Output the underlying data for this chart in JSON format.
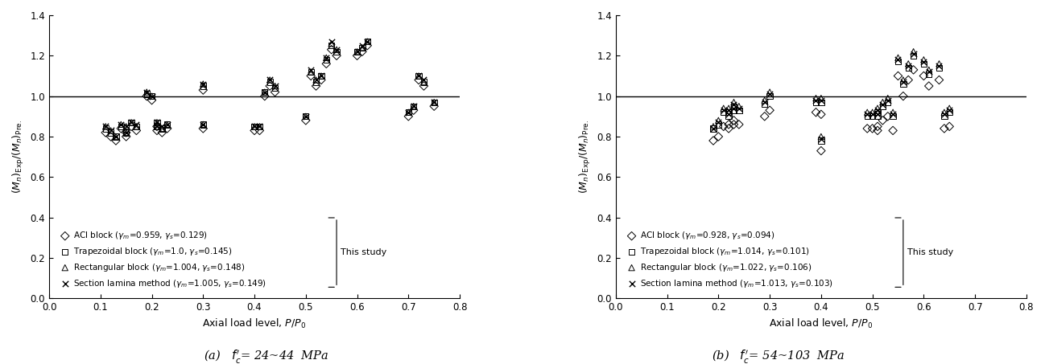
{
  "chart_a": {
    "legend_a": [
      {
        "label_plain": "ACI block (",
        "gm": "0.959",
        "gs": "0.129",
        "marker": "D"
      },
      {
        "label_plain": "Trapezoidal block (",
        "gm": "1.0",
        "gs": "0.145",
        "marker": "s"
      },
      {
        "label_plain": "Rectangular block (",
        "gm": "1.004",
        "gs": "0.148",
        "marker": "^"
      },
      {
        "label_plain": "Section lamina method (",
        "gm": "1.005",
        "gs": "0.149",
        "marker": "x"
      }
    ],
    "data": {
      "ACI": {
        "x": [
          0.11,
          0.12,
          0.13,
          0.14,
          0.15,
          0.15,
          0.16,
          0.17,
          0.19,
          0.2,
          0.21,
          0.21,
          0.22,
          0.23,
          0.3,
          0.3,
          0.4,
          0.41,
          0.42,
          0.43,
          0.44,
          0.5,
          0.51,
          0.52,
          0.53,
          0.54,
          0.55,
          0.56,
          0.6,
          0.61,
          0.62,
          0.7,
          0.71,
          0.72,
          0.73,
          0.75
        ],
        "y": [
          0.82,
          0.8,
          0.78,
          0.84,
          0.82,
          0.8,
          0.85,
          0.83,
          1.0,
          0.98,
          0.85,
          0.83,
          0.82,
          0.84,
          0.84,
          1.03,
          0.83,
          0.83,
          1.0,
          1.05,
          1.02,
          0.88,
          1.1,
          1.05,
          1.08,
          1.16,
          1.23,
          1.2,
          1.2,
          1.22,
          1.25,
          0.9,
          0.93,
          1.08,
          1.05,
          0.95
        ]
      },
      "Trap": {
        "x": [
          0.11,
          0.12,
          0.13,
          0.14,
          0.15,
          0.15,
          0.16,
          0.17,
          0.19,
          0.2,
          0.21,
          0.21,
          0.22,
          0.23,
          0.3,
          0.3,
          0.4,
          0.41,
          0.42,
          0.43,
          0.44,
          0.5,
          0.51,
          0.52,
          0.53,
          0.54,
          0.55,
          0.56,
          0.6,
          0.61,
          0.62,
          0.7,
          0.71,
          0.72,
          0.73,
          0.75
        ],
        "y": [
          0.84,
          0.82,
          0.8,
          0.85,
          0.84,
          0.82,
          0.87,
          0.85,
          1.01,
          1.0,
          0.87,
          0.85,
          0.84,
          0.86,
          0.86,
          1.05,
          0.85,
          0.85,
          1.02,
          1.07,
          1.04,
          0.9,
          1.12,
          1.07,
          1.1,
          1.18,
          1.25,
          1.22,
          1.22,
          1.24,
          1.27,
          0.92,
          0.95,
          1.1,
          1.07,
          0.97
        ]
      },
      "Rect": {
        "x": [
          0.11,
          0.12,
          0.13,
          0.14,
          0.15,
          0.15,
          0.16,
          0.17,
          0.19,
          0.2,
          0.21,
          0.21,
          0.22,
          0.23,
          0.3,
          0.3,
          0.4,
          0.41,
          0.42,
          0.43,
          0.44,
          0.5,
          0.51,
          0.52,
          0.53,
          0.54,
          0.55,
          0.56,
          0.6,
          0.61,
          0.62,
          0.7,
          0.71,
          0.72,
          0.73,
          0.75
        ],
        "y": [
          0.85,
          0.83,
          0.8,
          0.86,
          0.85,
          0.82,
          0.87,
          0.85,
          1.02,
          1.0,
          0.87,
          0.85,
          0.84,
          0.86,
          0.86,
          1.06,
          0.85,
          0.85,
          1.02,
          1.08,
          1.05,
          0.9,
          1.12,
          1.08,
          1.1,
          1.19,
          1.26,
          1.23,
          1.22,
          1.24,
          1.27,
          0.92,
          0.95,
          1.1,
          1.07,
          0.97
        ]
      },
      "Lamina": {
        "x": [
          0.11,
          0.12,
          0.13,
          0.14,
          0.15,
          0.15,
          0.16,
          0.17,
          0.19,
          0.2,
          0.21,
          0.21,
          0.22,
          0.23,
          0.3,
          0.3,
          0.4,
          0.41,
          0.42,
          0.43,
          0.44,
          0.5,
          0.51,
          0.52,
          0.53,
          0.54,
          0.55,
          0.56,
          0.6,
          0.61,
          0.62,
          0.7,
          0.71,
          0.72,
          0.73,
          0.75
        ],
        "y": [
          0.85,
          0.83,
          0.8,
          0.86,
          0.85,
          0.82,
          0.87,
          0.86,
          1.02,
          1.0,
          0.87,
          0.85,
          0.85,
          0.86,
          0.86,
          1.06,
          0.85,
          0.85,
          1.02,
          1.08,
          1.05,
          0.9,
          1.13,
          1.08,
          1.1,
          1.19,
          1.27,
          1.23,
          1.22,
          1.25,
          1.27,
          0.92,
          0.95,
          1.1,
          1.08,
          0.97
        ]
      }
    }
  },
  "chart_b": {
    "legend_b": [
      {
        "label_plain": "ACI block (",
        "gm": "0.928",
        "gs": "0.094",
        "marker": "D"
      },
      {
        "label_plain": "Trapezoidal block (",
        "gm": "1.014",
        "gs": "0.101",
        "marker": "s"
      },
      {
        "label_plain": "Rectangular block (",
        "gm": "1.022",
        "gs": "0.106",
        "marker": "^"
      },
      {
        "label_plain": "Section lamina method (",
        "gm": "1.013",
        "gs": "0.103",
        "marker": "x"
      }
    ],
    "data": {
      "ACI": {
        "x": [
          0.19,
          0.2,
          0.21,
          0.22,
          0.22,
          0.23,
          0.23,
          0.24,
          0.29,
          0.3,
          0.39,
          0.4,
          0.4,
          0.49,
          0.5,
          0.51,
          0.51,
          0.52,
          0.53,
          0.54,
          0.55,
          0.56,
          0.57,
          0.58,
          0.6,
          0.61,
          0.63,
          0.64,
          0.65
        ],
        "y": [
          0.78,
          0.8,
          0.85,
          0.84,
          0.86,
          0.86,
          0.88,
          0.86,
          0.9,
          0.93,
          0.92,
          0.73,
          0.91,
          0.84,
          0.84,
          0.83,
          0.85,
          0.88,
          0.9,
          0.83,
          1.1,
          1.0,
          1.08,
          1.13,
          1.1,
          1.05,
          1.08,
          0.84,
          0.85
        ]
      },
      "Trap": {
        "x": [
          0.19,
          0.2,
          0.21,
          0.22,
          0.22,
          0.23,
          0.23,
          0.24,
          0.29,
          0.3,
          0.39,
          0.4,
          0.4,
          0.49,
          0.5,
          0.51,
          0.51,
          0.52,
          0.53,
          0.54,
          0.55,
          0.56,
          0.57,
          0.58,
          0.6,
          0.61,
          0.63,
          0.64,
          0.65
        ],
        "y": [
          0.84,
          0.86,
          0.92,
          0.9,
          0.92,
          0.93,
          0.95,
          0.93,
          0.96,
          1.0,
          0.97,
          0.78,
          0.97,
          0.9,
          0.9,
          0.9,
          0.92,
          0.95,
          0.97,
          0.9,
          1.17,
          1.06,
          1.14,
          1.2,
          1.16,
          1.11,
          1.14,
          0.9,
          0.92
        ]
      },
      "Rect": {
        "x": [
          0.19,
          0.2,
          0.21,
          0.22,
          0.22,
          0.23,
          0.23,
          0.24,
          0.29,
          0.3,
          0.39,
          0.4,
          0.4,
          0.49,
          0.5,
          0.51,
          0.51,
          0.52,
          0.53,
          0.54,
          0.55,
          0.56,
          0.57,
          0.58,
          0.6,
          0.61,
          0.63,
          0.64,
          0.65
        ],
        "y": [
          0.85,
          0.88,
          0.94,
          0.92,
          0.94,
          0.95,
          0.97,
          0.95,
          0.98,
          1.02,
          0.99,
          0.8,
          0.99,
          0.92,
          0.92,
          0.92,
          0.94,
          0.97,
          0.99,
          0.92,
          1.19,
          1.08,
          1.16,
          1.22,
          1.18,
          1.13,
          1.16,
          0.92,
          0.94
        ]
      },
      "Lamina": {
        "x": [
          0.19,
          0.2,
          0.21,
          0.22,
          0.22,
          0.23,
          0.23,
          0.24,
          0.29,
          0.3,
          0.39,
          0.4,
          0.4,
          0.49,
          0.5,
          0.51,
          0.51,
          0.52,
          0.53,
          0.54,
          0.55,
          0.56,
          0.57,
          0.58,
          0.6,
          0.61,
          0.63,
          0.64,
          0.65
        ],
        "y": [
          0.84,
          0.87,
          0.93,
          0.91,
          0.93,
          0.94,
          0.96,
          0.94,
          0.97,
          1.01,
          0.98,
          0.79,
          0.98,
          0.91,
          0.91,
          0.91,
          0.93,
          0.96,
          0.98,
          0.91,
          1.18,
          1.07,
          1.15,
          1.21,
          1.17,
          1.12,
          1.15,
          0.91,
          0.93
        ]
      }
    }
  },
  "ylabel": "$(M_n)_{\\mathrm{Exp}}/(M_n)_{\\mathrm{Pre.}}$",
  "xlabel": "Axial load level, $P/P_0$",
  "xlim": [
    0,
    0.8
  ],
  "ylim": [
    0,
    1.4
  ],
  "yticks": [
    0,
    0.2,
    0.4,
    0.6,
    0.8,
    1.0,
    1.2,
    1.4
  ],
  "xticks": [
    0,
    0.1,
    0.2,
    0.3,
    0.4,
    0.5,
    0.6,
    0.7,
    0.8
  ],
  "subtitle_a": "(a)   $f_c^{\\prime}$= 24~44  MPa",
  "subtitle_b": "(b)   $f_c^{\\prime}$= 54~103  MPa"
}
